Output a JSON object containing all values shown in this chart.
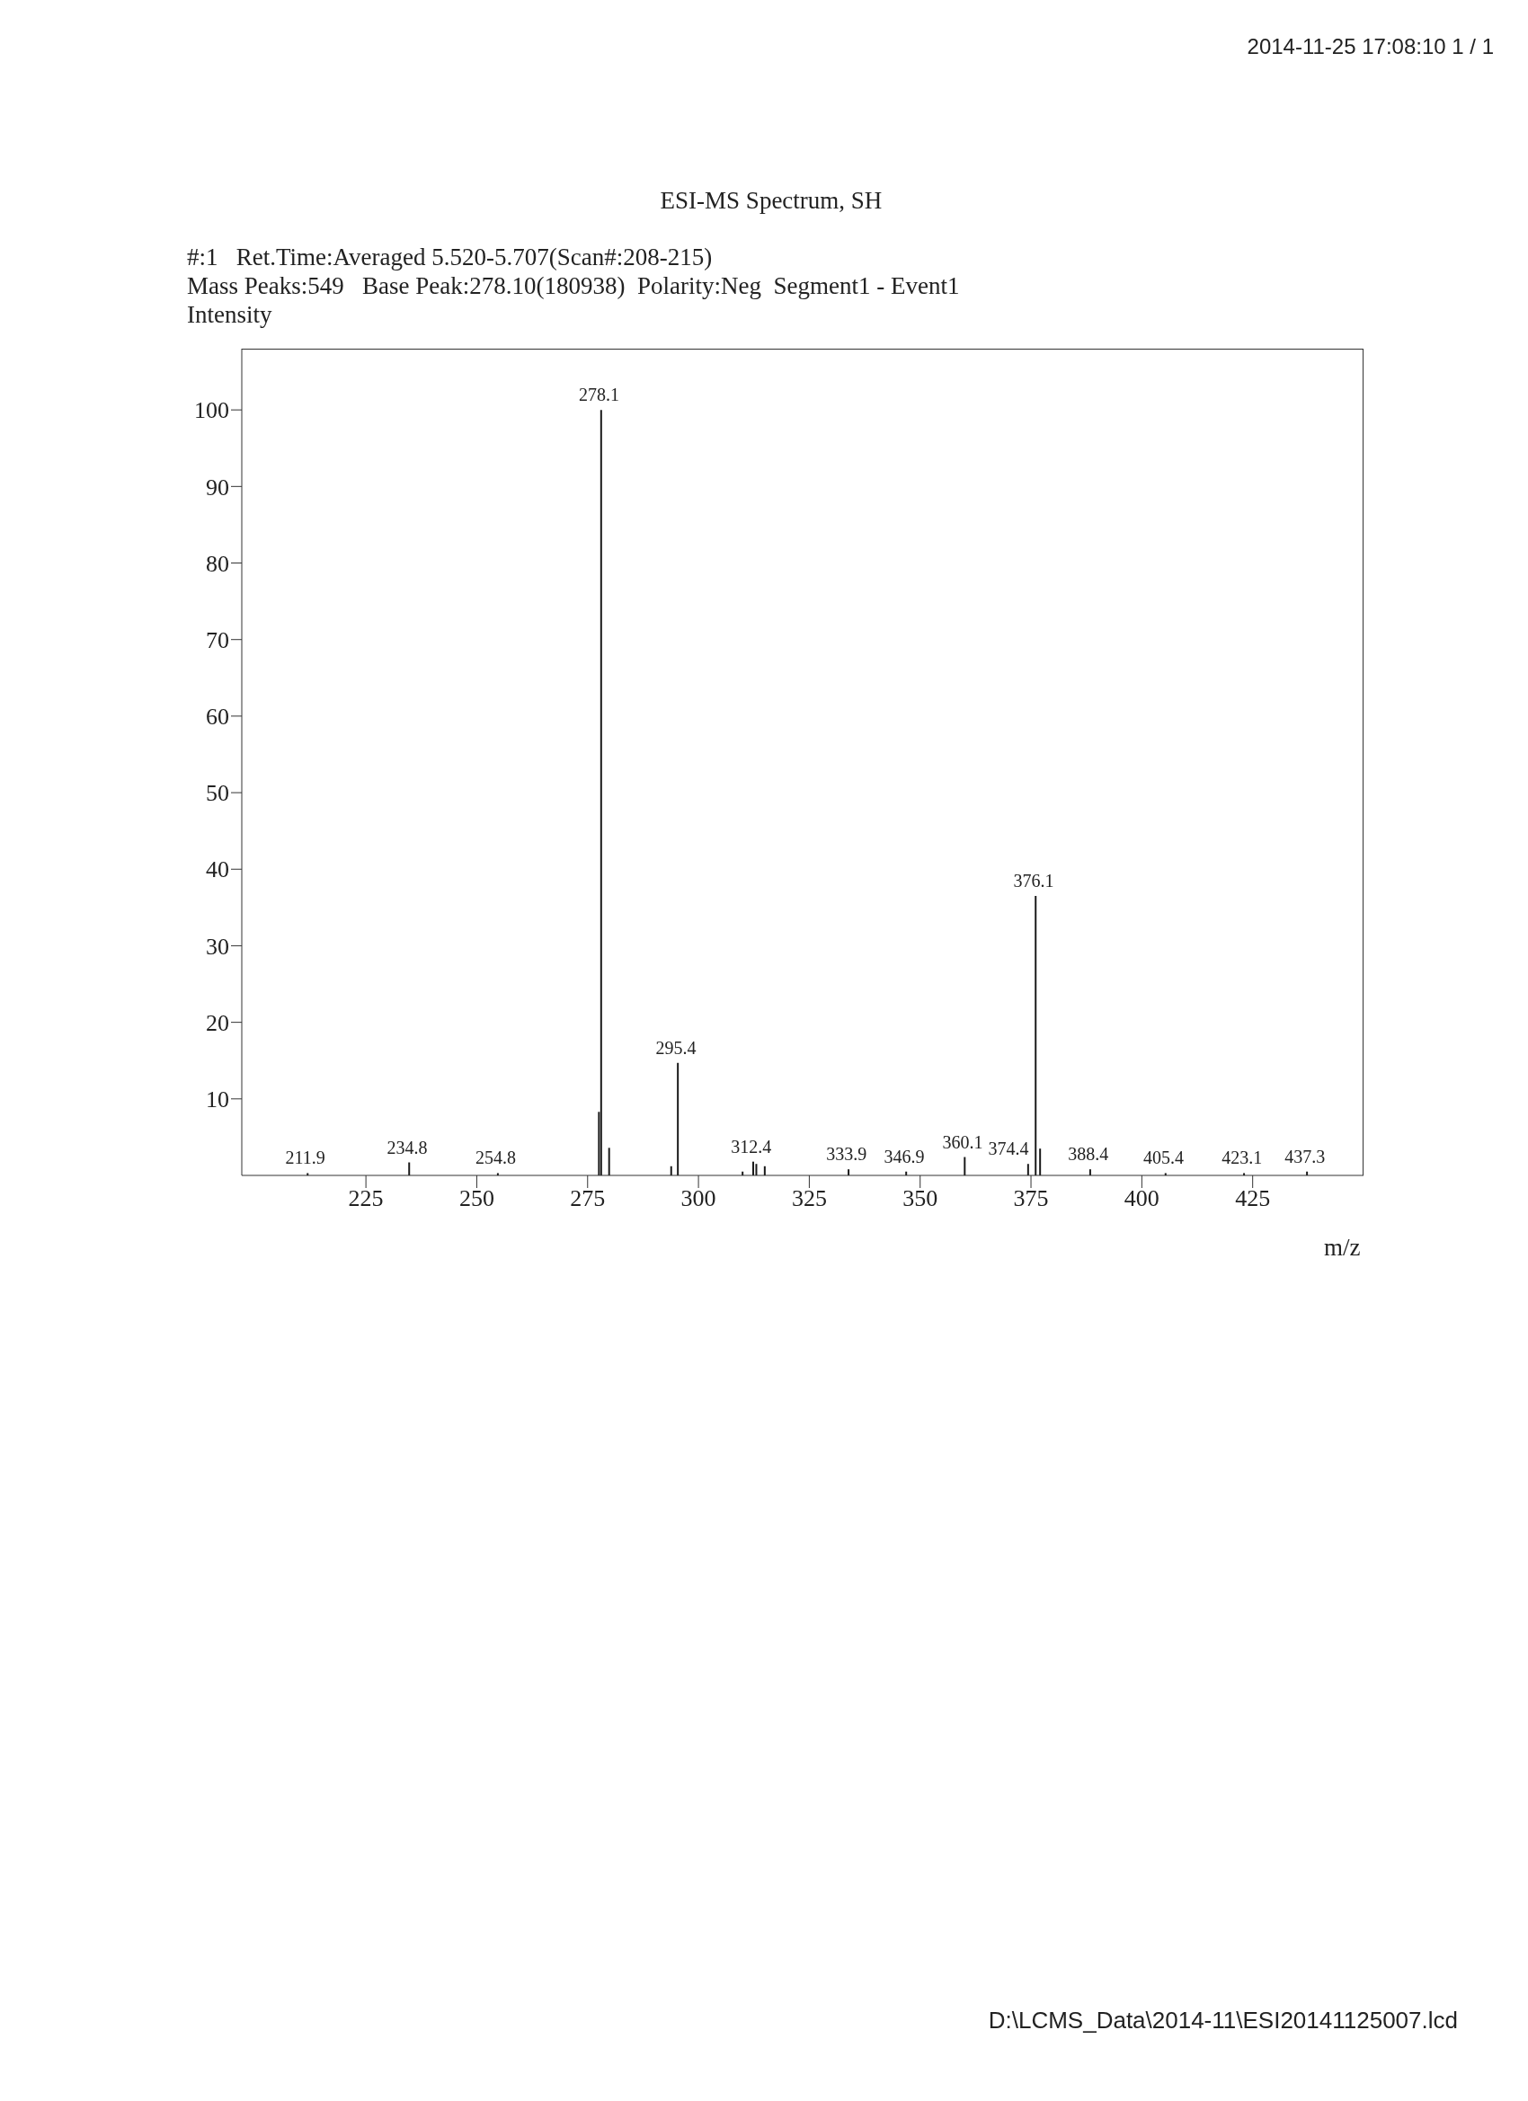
{
  "chart_data": {
    "type": "bar",
    "title": "ESI-MS Spectrum, SH",
    "subtitle": "#:1   Ret.Time:Averaged 5.520-5.707(Scan#:208-215)",
    "annotations": [
      "Mass Peaks:549   Base Peak:278.10(180938)  Polarity:Neg  Segment1 - Event1",
      "2014-11-25 17:08:10 1 / 1",
      "D:\\LCMS_Data\\2014-11\\ESI20141125007.lcd",
      {
        "text": "211.9",
        "x": 211.9,
        "y": 0.3
      },
      {
        "text": "234.8",
        "x": 234.8,
        "y": 1.7
      },
      {
        "text": "254.8",
        "x": 254.8,
        "y": 0.3
      },
      {
        "text": "278.1",
        "x": 278.1,
        "y": 100
      },
      {
        "text": "295.4",
        "x": 295.4,
        "y": 14.7
      },
      {
        "text": "312.4",
        "x": 312.4,
        "y": 1.8
      },
      {
        "text": "333.9",
        "x": 333.9,
        "y": 0.8
      },
      {
        "text": "346.9",
        "x": 346.9,
        "y": 0.5
      },
      {
        "text": "360.1",
        "x": 360.1,
        "y": 2.4
      },
      {
        "text": "374.4",
        "x": 374.4,
        "y": 1.5
      },
      {
        "text": "376.1",
        "x": 376.1,
        "y": 36.5
      },
      {
        "text": "388.4",
        "x": 388.4,
        "y": 0.8
      },
      {
        "text": "405.4",
        "x": 405.4,
        "y": 0.3
      },
      {
        "text": "423.1",
        "x": 423.1,
        "y": 0.3
      },
      {
        "text": "437.3",
        "x": 437.3,
        "y": 0.5
      }
    ],
    "ylabel": "Intensity",
    "xlabel": "m/z",
    "x": [
      211.9,
      234.8,
      254.8,
      277.6,
      278.1,
      279.9,
      293.9,
      295.4,
      310.0,
      312.4,
      313.1,
      315.0,
      333.9,
      346.9,
      360.1,
      374.4,
      376.1,
      377.1,
      388.4,
      405.4,
      423.1,
      437.3
    ],
    "values": [
      0.3,
      1.7,
      0.3,
      8.3,
      100,
      3.6,
      1.2,
      14.7,
      0.5,
      1.8,
      1.5,
      1.2,
      0.8,
      0.5,
      2.4,
      1.5,
      36.5,
      3.5,
      0.8,
      0.3,
      0.3,
      0.5
    ],
    "color": "#1a1a1a",
    "xlim": [
      197,
      450
    ],
    "xticks": [
      225,
      250,
      275,
      300,
      325,
      350,
      375,
      400,
      425
    ],
    "ylim": [
      0,
      108
    ],
    "yticks": [
      10,
      20,
      30,
      40,
      50,
      60,
      70,
      80,
      90,
      100
    ]
  }
}
